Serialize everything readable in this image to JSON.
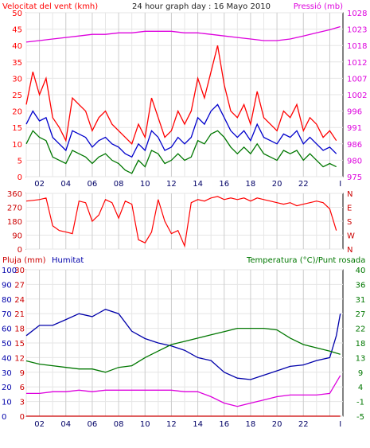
{
  "colors": {
    "wind_gust": "#ff0000",
    "wind_avg": "#0000cc",
    "wind_min": "#007700",
    "pressure": "#dd00dd",
    "rain": "#cc0000",
    "humidity": "#0000aa",
    "temperature": "#007700",
    "dewpoint": "#dd00dd",
    "grid_major": "#cccccc",
    "grid_minor": "#e6e6e6"
  },
  "chart_data": [
    {
      "type": "line",
      "title": "24 hour graph day : 16 Mayo 2010",
      "left_axis_label": "Velocitat del vent (kmh)",
      "right_axis_label": "Pressió (mb)",
      "ylim": [
        0,
        50
      ],
      "y_ticks": [
        "0",
        "5",
        "10",
        "15",
        "20",
        "25",
        "30",
        "35",
        "40",
        "45",
        "50"
      ],
      "y2lim": [
        975,
        1028
      ],
      "y2_ticks": [
        "975",
        "980",
        "986",
        "991",
        "996",
        "1002",
        "1007",
        "1012",
        "1018",
        "1023",
        "1028"
      ],
      "x_ticks": [
        "02",
        "04",
        "06",
        "08",
        "10",
        "12",
        "14",
        "16",
        "18",
        "20",
        "22",
        "I"
      ],
      "series": [
        {
          "name": "gust",
          "x": [
            0,
            0.5,
            1,
            1.5,
            2,
            2.5,
            3,
            3.5,
            4,
            4.5,
            5,
            5.5,
            6,
            6.5,
            7,
            7.5,
            8,
            8.5,
            9,
            9.5,
            10,
            10.5,
            11,
            11.5,
            12,
            12.5,
            13,
            13.5,
            14,
            14.5,
            15,
            15.5,
            16,
            16.5,
            17,
            17.5,
            18,
            18.5,
            19,
            19.5,
            20,
            20.5,
            21,
            21.5,
            22,
            22.5,
            23,
            23.5
          ],
          "values": [
            22,
            32,
            25,
            30,
            18,
            15,
            11,
            24,
            22,
            20,
            14,
            18,
            20,
            16,
            14,
            12,
            10,
            16,
            12,
            24,
            18,
            12,
            14,
            20,
            16,
            20,
            30,
            24,
            32,
            40,
            28,
            20,
            18,
            22,
            16,
            26,
            18,
            16,
            14,
            20,
            18,
            22,
            14,
            18,
            16,
            12,
            14,
            11
          ]
        },
        {
          "name": "avg",
          "x": [
            0,
            0.5,
            1,
            1.5,
            2,
            2.5,
            3,
            3.5,
            4,
            4.5,
            5,
            5.5,
            6,
            6.5,
            7,
            7.5,
            8,
            8.5,
            9,
            9.5,
            10,
            10.5,
            11,
            11.5,
            12,
            12.5,
            13,
            13.5,
            14,
            14.5,
            15,
            15.5,
            16,
            16.5,
            17,
            17.5,
            18,
            18.5,
            19,
            19.5,
            20,
            20.5,
            21,
            21.5,
            22,
            22.5,
            23,
            23.5
          ],
          "values": [
            16,
            20,
            17,
            18,
            12,
            10,
            8,
            14,
            13,
            12,
            9,
            11,
            12,
            10,
            9,
            7,
            6,
            10,
            8,
            14,
            12,
            8,
            9,
            12,
            10,
            12,
            18,
            16,
            20,
            22,
            18,
            14,
            12,
            14,
            11,
            16,
            12,
            11,
            10,
            13,
            12,
            14,
            10,
            12,
            10,
            8,
            9,
            7
          ]
        },
        {
          "name": "min",
          "x": [
            0,
            0.5,
            1,
            1.5,
            2,
            2.5,
            3,
            3.5,
            4,
            4.5,
            5,
            5.5,
            6,
            6.5,
            7,
            7.5,
            8,
            8.5,
            9,
            9.5,
            10,
            10.5,
            11,
            11.5,
            12,
            12.5,
            13,
            13.5,
            14,
            14.5,
            15,
            15.5,
            16,
            16.5,
            17,
            17.5,
            18,
            18.5,
            19,
            19.5,
            20,
            20.5,
            21,
            21.5,
            22,
            22.5,
            23,
            23.5
          ],
          "values": [
            10,
            14,
            12,
            11,
            6,
            5,
            4,
            8,
            7,
            6,
            4,
            6,
            7,
            5,
            4,
            2,
            1,
            5,
            3,
            8,
            7,
            4,
            5,
            7,
            5,
            6,
            11,
            10,
            13,
            14,
            12,
            9,
            7,
            9,
            7,
            10,
            7,
            6,
            5,
            8,
            7,
            8,
            5,
            7,
            5,
            3,
            4,
            3
          ]
        },
        {
          "name": "pressure",
          "axis": "right",
          "x": [
            0,
            1,
            2,
            3,
            4,
            5,
            6,
            7,
            8,
            9,
            10,
            11,
            12,
            13,
            14,
            15,
            16,
            17,
            18,
            19,
            20,
            21,
            22,
            23,
            23.8
          ],
          "values": [
            1018.5,
            1019,
            1019.5,
            1020,
            1020.5,
            1021,
            1021,
            1021.5,
            1021.5,
            1022,
            1022,
            1022,
            1021.5,
            1021.5,
            1021,
            1020.5,
            1020,
            1019.5,
            1019,
            1019,
            1019.5,
            1020.5,
            1021.5,
            1022.5,
            1023.5
          ]
        }
      ]
    },
    {
      "type": "line",
      "y_ticks": [
        "0",
        "90",
        "180",
        "270",
        "360"
      ],
      "ylim": [
        0,
        360
      ],
      "right_tick_labels": [
        "N",
        "W",
        "S",
        "E",
        "N"
      ],
      "series": [
        {
          "name": "wind_direction",
          "x": [
            0,
            0.5,
            1,
            1.5,
            2,
            2.5,
            3,
            3.5,
            4,
            4.5,
            5,
            5.5,
            6,
            6.5,
            7,
            7.5,
            8,
            8.5,
            9,
            9.5,
            10,
            10.5,
            11,
            11.5,
            12,
            12.5,
            13,
            13.5,
            14,
            14.5,
            15,
            15.5,
            16,
            16.5,
            17,
            17.5,
            18,
            18.5,
            19,
            19.5,
            20,
            20.5,
            21,
            21.5,
            22,
            22.5,
            23,
            23.5
          ],
          "values": [
            310,
            315,
            320,
            330,
            150,
            120,
            110,
            100,
            310,
            300,
            180,
            220,
            320,
            300,
            200,
            310,
            290,
            60,
            40,
            110,
            320,
            180,
            100,
            120,
            20,
            300,
            320,
            310,
            330,
            340,
            320,
            330,
            320,
            330,
            310,
            330,
            320,
            310,
            300,
            290,
            300,
            280,
            290,
            300,
            310,
            300,
            260,
            120
          ]
        }
      ]
    },
    {
      "type": "line",
      "left_axis_labels": [
        "Pluja (mm)",
        "Humitat"
      ],
      "right_axis_label": "Temperatura (°C)/Punt rosada",
      "rain_ticks": [
        "0",
        "3",
        "6",
        "9",
        "12",
        "15",
        "18",
        "21",
        "24",
        "27",
        "30"
      ],
      "humidity_ticks": [
        "0",
        "10",
        "20",
        "30",
        "40",
        "50",
        "60",
        "70",
        "80",
        "90",
        "100"
      ],
      "temp_ticks": [
        "-5",
        "-1",
        "4",
        "9",
        "13",
        "18",
        "22",
        "27",
        "31",
        "36",
        "40"
      ],
      "ylim": [
        0,
        100
      ],
      "y2lim": [
        -5,
        40
      ],
      "x_ticks": [
        "02",
        "04",
        "06",
        "08",
        "10",
        "12",
        "14",
        "16",
        "18",
        "20",
        "22",
        "I"
      ],
      "series": [
        {
          "name": "rain",
          "x": [
            0,
            23.8
          ],
          "values": [
            0,
            0
          ]
        },
        {
          "name": "humidity",
          "x": [
            0,
            1,
            2,
            3,
            4,
            5,
            6,
            7,
            8,
            9,
            10,
            11,
            12,
            13,
            14,
            15,
            16,
            17,
            18,
            19,
            20,
            21,
            22,
            23,
            23.5,
            23.8
          ],
          "values": [
            55,
            62,
            62,
            66,
            70,
            68,
            73,
            70,
            58,
            53,
            50,
            48,
            45,
            40,
            38,
            30,
            26,
            25,
            28,
            31,
            34,
            35,
            38,
            40,
            55,
            70
          ]
        },
        {
          "name": "temperature",
          "axis": "right",
          "x": [
            0,
            1,
            2,
            3,
            4,
            5,
            6,
            7,
            8,
            9,
            10,
            11,
            12,
            13,
            14,
            15,
            16,
            17,
            18,
            19,
            20,
            21,
            22,
            23,
            23.8
          ],
          "values": [
            12,
            11,
            10.5,
            10,
            9.5,
            9.5,
            8.5,
            10,
            10.5,
            13,
            15,
            17,
            18,
            19,
            20,
            21,
            22,
            22,
            22,
            21.5,
            19,
            17,
            16,
            15,
            14
          ]
        },
        {
          "name": "dewpoint",
          "axis": "right",
          "x": [
            0,
            1,
            2,
            3,
            4,
            5,
            6,
            7,
            8,
            9,
            10,
            11,
            12,
            13,
            14,
            15,
            16,
            17,
            18,
            19,
            20,
            21,
            22,
            23,
            23.8
          ],
          "values": [
            2,
            2,
            2.5,
            2.5,
            3,
            2.5,
            3,
            3,
            3,
            3,
            3,
            3,
            2.5,
            2.5,
            1,
            -1,
            -2,
            -1,
            0,
            1,
            1.5,
            1.5,
            1.5,
            2,
            7.5
          ]
        }
      ]
    }
  ]
}
